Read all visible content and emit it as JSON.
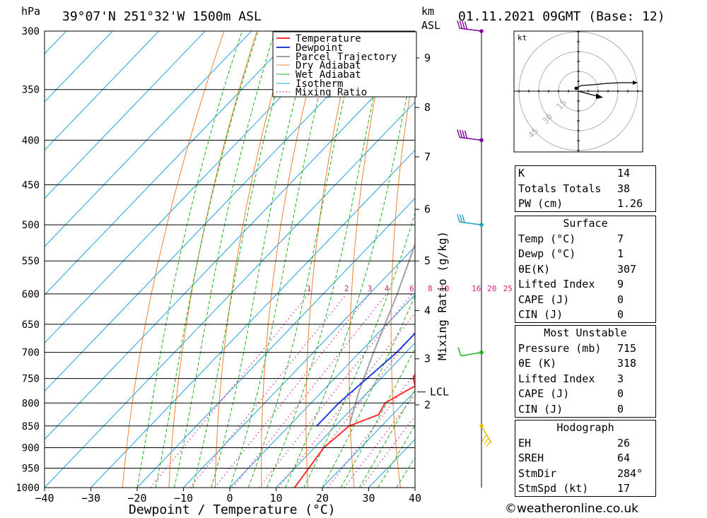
{
  "header": {
    "pressure_unit": "hPa",
    "location": "39°07'N  251°32'W  1500m  ASL",
    "height_unit": "km",
    "height_unit2": "ASL",
    "datetime": "01.11.2021  09GMT  (Base: 12)"
  },
  "chart_data": {
    "type": "line",
    "xlabel": "Dewpoint / Temperature (°C)",
    "ylabel": "hPa",
    "y2label": "Mixing Ratio (g/kg)",
    "xlim": [
      -40,
      40
    ],
    "ylim": [
      1000,
      300
    ],
    "x_ticks": [
      "−40",
      "−30",
      "−20",
      "−10",
      "0",
      "10",
      "20",
      "30",
      "40"
    ],
    "pressure_levels": [
      300,
      350,
      400,
      450,
      500,
      550,
      600,
      650,
      700,
      750,
      800,
      850,
      900,
      950,
      1000
    ],
    "km_levels": [
      {
        "km": "9",
        "p": 322
      },
      {
        "km": "8",
        "p": 367
      },
      {
        "km": "7",
        "p": 418
      },
      {
        "km": "6",
        "p": 480
      },
      {
        "km": "5",
        "p": 550
      },
      {
        "km": "4",
        "p": 627
      },
      {
        "km": "3",
        "p": 712
      },
      {
        "km": "2",
        "p": 804
      }
    ],
    "lcl": {
      "label": "LCL",
      "p": 777
    },
    "mixing_ratio_labels": [
      "1",
      "2",
      "3",
      "4",
      "6",
      "8",
      "10",
      "16",
      "20",
      "25"
    ],
    "legend": [
      "Temperature",
      "Dewpoint",
      "Parcel Trajectory",
      "Dry Adiabat",
      "Wet Adiabat",
      "Isotherm",
      "Mixing Ratio"
    ],
    "colors": {
      "temperature": "#ff3030",
      "dewpoint": "#2040e0",
      "parcel": "#a0a0a0",
      "dry_adiabat": "#f08030",
      "wet_adiabat": "#20b020",
      "isotherm": "#20a0e0",
      "mixing_ratio": "#e02080"
    },
    "series": [
      {
        "name": "Temperature",
        "points": [
          [
            1000,
            14
          ],
          [
            900,
            12
          ],
          [
            850,
            13
          ],
          [
            825,
            17
          ],
          [
            800,
            16
          ],
          [
            775,
            18
          ],
          [
            765,
            19
          ],
          [
            750,
            17
          ],
          [
            700,
            14
          ],
          [
            650,
            11
          ],
          [
            600,
            7
          ],
          [
            550,
            3
          ],
          [
            500,
            -1
          ],
          [
            450,
            -5
          ],
          [
            400,
            -10
          ],
          [
            350,
            -16
          ],
          [
            300,
            -23
          ]
        ]
      },
      {
        "name": "Dewpoint",
        "points": [
          [
            850,
            6
          ],
          [
            800,
            6
          ],
          [
            750,
            7
          ],
          [
            700,
            8
          ],
          [
            650,
            8
          ],
          [
            600,
            5
          ],
          [
            580,
            3
          ],
          [
            560,
            0
          ],
          [
            550,
            -1
          ],
          [
            530,
            -3
          ],
          [
            500,
            -5
          ],
          [
            470,
            -4
          ],
          [
            450,
            -2
          ],
          [
            400,
            -8
          ],
          [
            350,
            -15
          ],
          [
            320,
            -19
          ],
          [
            300,
            -20
          ]
        ]
      },
      {
        "name": "Parcel Trajectory",
        "points": [
          [
            850,
            13
          ],
          [
            777,
            8
          ],
          [
            700,
            3
          ],
          [
            600,
            -4
          ],
          [
            500,
            -13
          ],
          [
            400,
            -23
          ],
          [
            300,
            -36
          ]
        ]
      }
    ]
  },
  "wind_barbs": [
    {
      "p": 300,
      "color": "#8000a0"
    },
    {
      "p": 400,
      "color": "#8000a0"
    },
    {
      "p": 500,
      "color": "#20a0c0"
    },
    {
      "p": 700,
      "color": "#20b020"
    },
    {
      "p": 850,
      "color": "#e0c000"
    }
  ],
  "hodograph": {
    "unit": "kt",
    "ring_labels": [
      "15",
      "30",
      "45"
    ]
  },
  "indices": {
    "k": {
      "label": "K",
      "value": "14"
    },
    "totals": {
      "label": "Totals Totals",
      "value": "38"
    },
    "pw": {
      "label": "PW (cm)",
      "value": "1.26"
    }
  },
  "surface": {
    "title": "Surface",
    "temp": {
      "label": "Temp (°C)",
      "value": "7"
    },
    "dewp": {
      "label": "Dewp (°C)",
      "value": "1"
    },
    "theta_e": {
      "label": "θE(K)",
      "value": "307"
    },
    "lifted": {
      "label": "Lifted Index",
      "value": "9"
    },
    "cape": {
      "label": "CAPE (J)",
      "value": "0"
    },
    "cin": {
      "label": "CIN (J)",
      "value": "0"
    }
  },
  "most_unstable": {
    "title": "Most Unstable",
    "pressure": {
      "label": "Pressure (mb)",
      "value": "715"
    },
    "theta_e": {
      "label": "θE (K)",
      "value": "318"
    },
    "lifted": {
      "label": "Lifted Index",
      "value": "3"
    },
    "cape": {
      "label": "CAPE (J)",
      "value": "0"
    },
    "cin": {
      "label": "CIN (J)",
      "value": "0"
    }
  },
  "hodograph_stats": {
    "title": "Hodograph",
    "eh": {
      "label": "EH",
      "value": "26"
    },
    "sreh": {
      "label": "SREH",
      "value": "64"
    },
    "stmdir": {
      "label": "StmDir",
      "value": "284°"
    },
    "stmspd": {
      "label": "StmSpd (kt)",
      "value": "17"
    }
  },
  "footer": {
    "copyright": "©weatheronline.co.uk"
  }
}
